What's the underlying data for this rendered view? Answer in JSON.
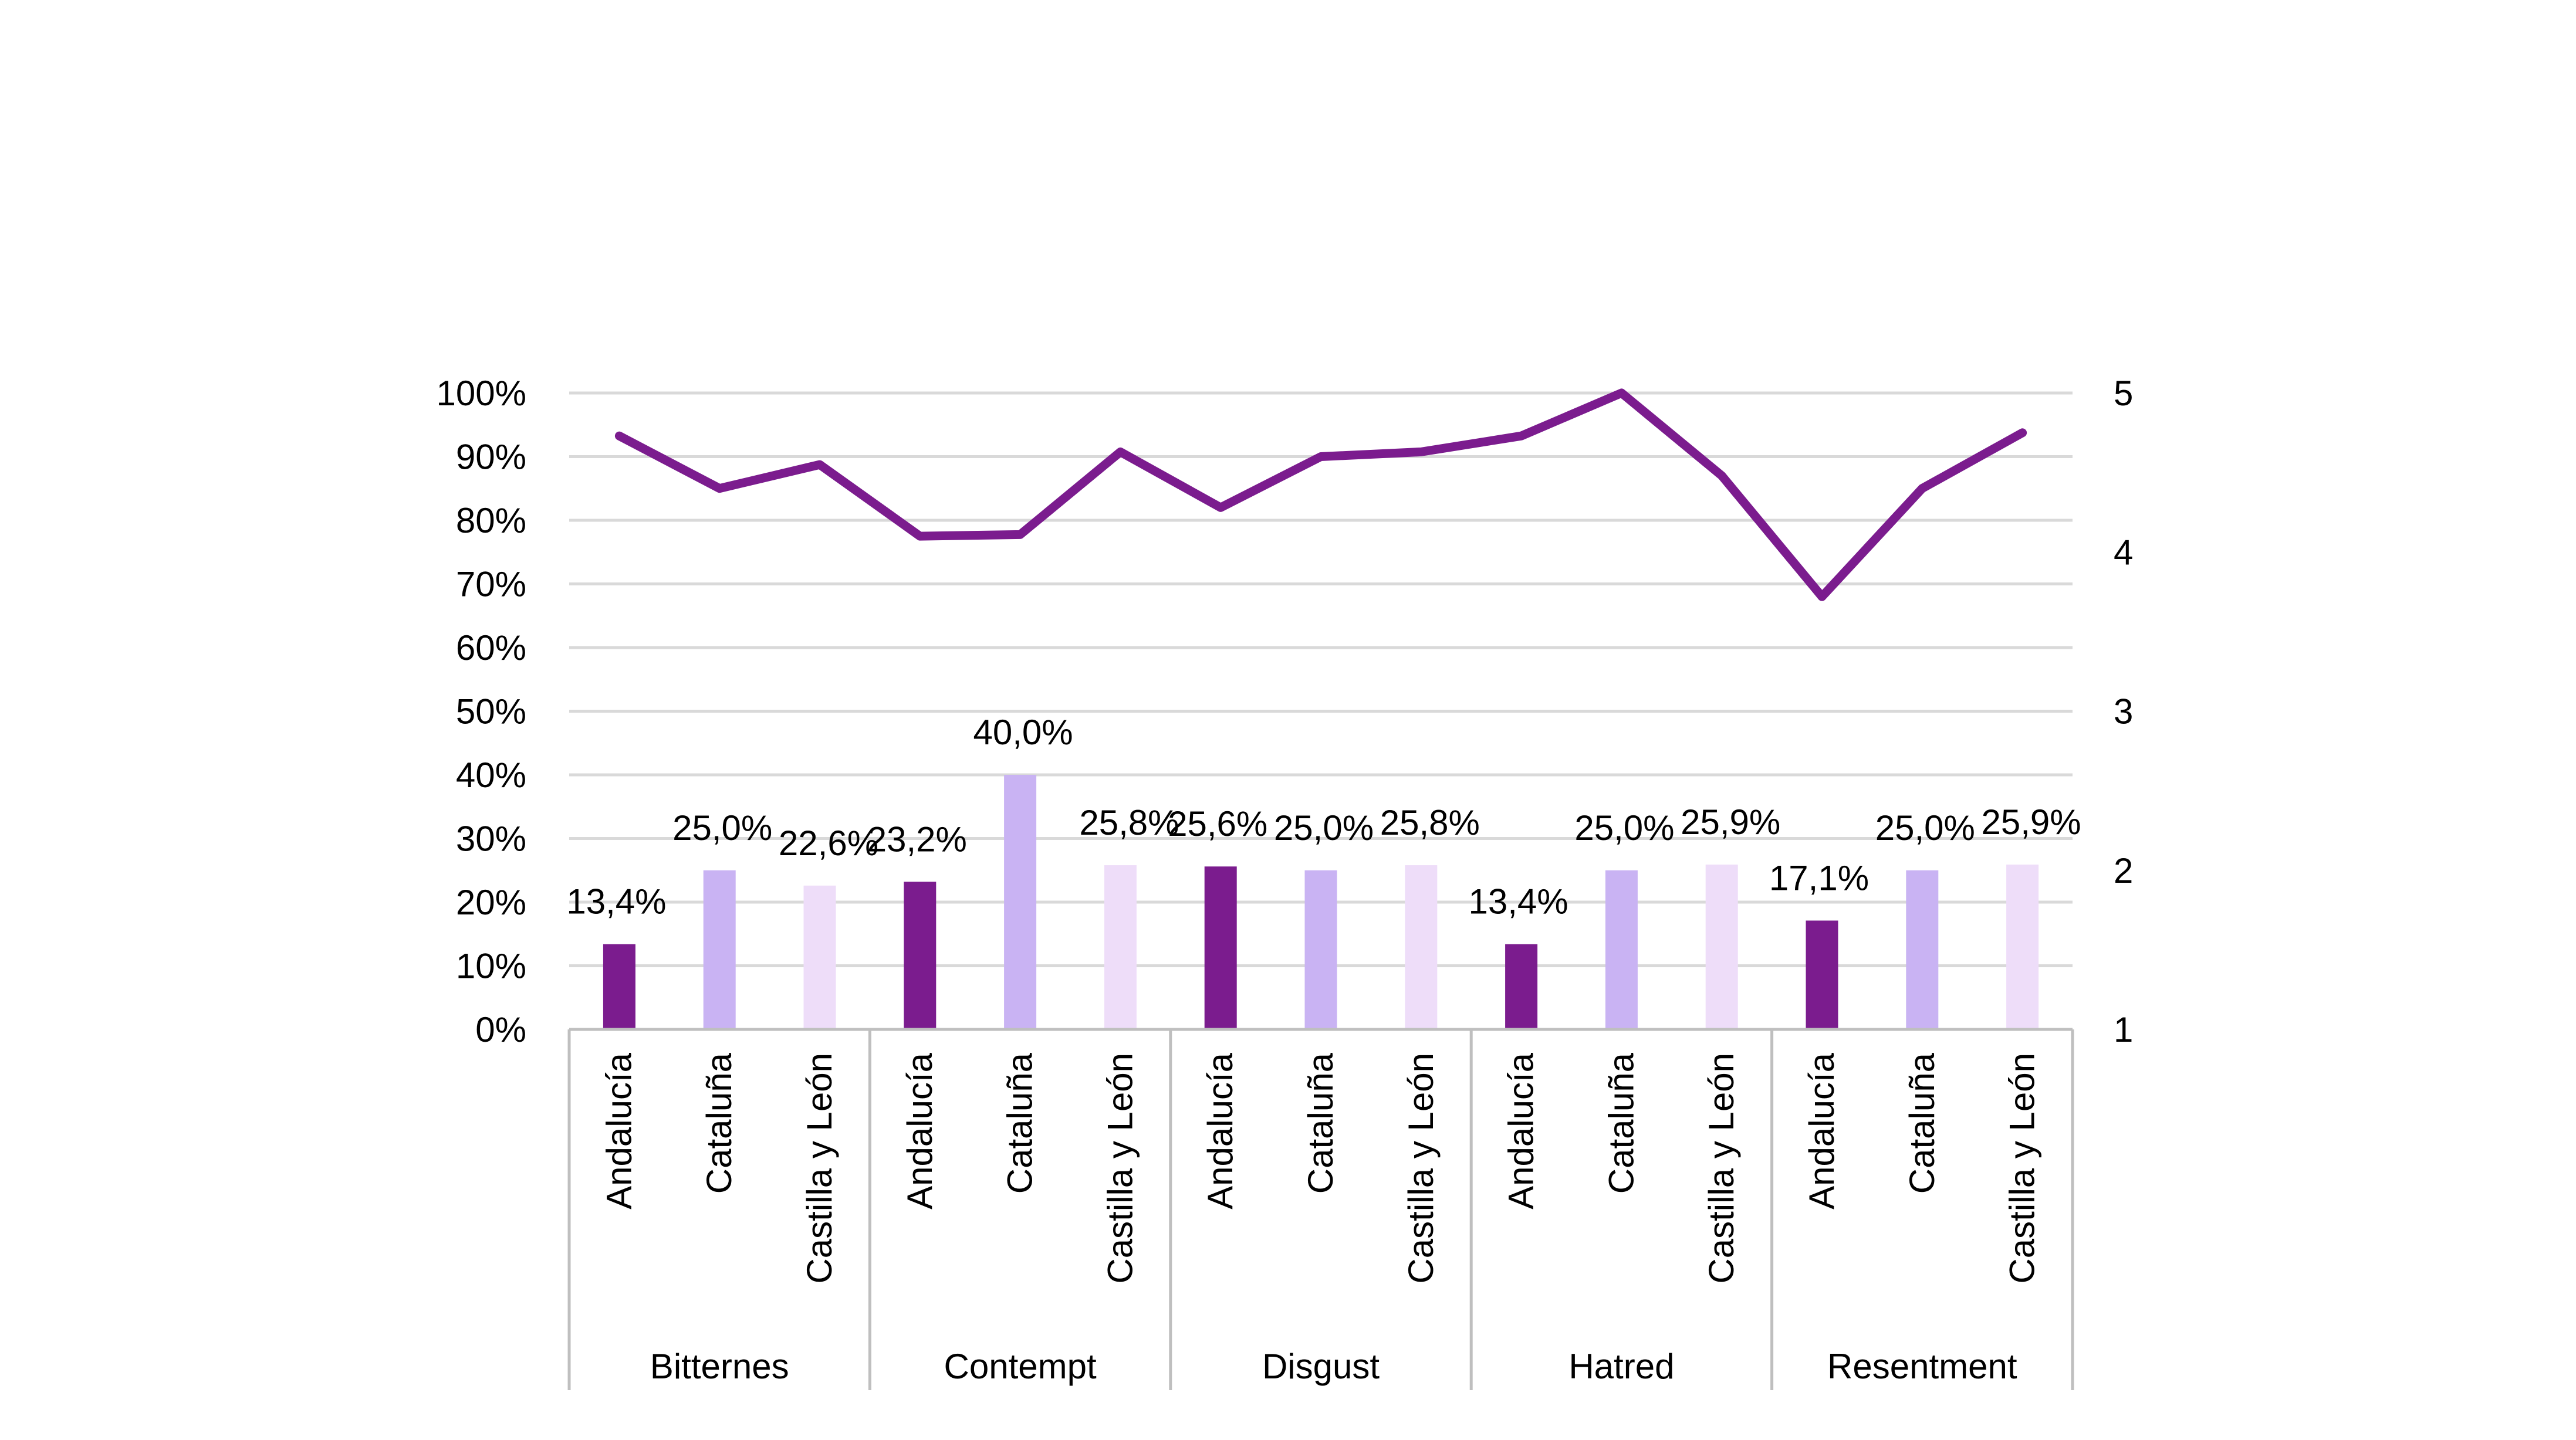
{
  "chart_data": {
    "type": "bar",
    "groups": [
      {
        "label": "Bitternes",
        "categories": [
          "Andalucía",
          "Cataluña",
          "Castilla y León"
        ]
      },
      {
        "label": "Contempt",
        "categories": [
          "Andalucía",
          "Cataluña",
          "Castilla y León"
        ]
      },
      {
        "label": "Disgust",
        "categories": [
          "Andalucía",
          "Cataluña",
          "Castilla y León"
        ]
      },
      {
        "label": "Hatred",
        "categories": [
          "Andalucía",
          "Cataluña",
          "Castilla y León"
        ]
      },
      {
        "label": "Resentment",
        "categories": [
          "Andalucía",
          "Cataluña",
          "Castilla y León"
        ]
      }
    ],
    "bar_values": [
      13.4,
      25.0,
      22.6,
      23.2,
      40.0,
      25.8,
      25.6,
      25.0,
      25.8,
      13.4,
      25.0,
      25.9,
      17.1,
      25.0,
      25.9
    ],
    "bar_labels": [
      "13,4%",
      "25,0%",
      "22,6%",
      "23,2%",
      "40,0%",
      "25,8%",
      "25,6%",
      "25,0%",
      "25,8%",
      "13,4%",
      "25,0%",
      "25,9%",
      "17,1%",
      "25,0%",
      "25,9%"
    ],
    "line_values": [
      4.73,
      4.4,
      4.55,
      4.1,
      4.11,
      4.63,
      4.28,
      4.6,
      4.63,
      4.73,
      5.0,
      4.48,
      3.72,
      4.4,
      4.75
    ],
    "y_left": {
      "ylim": [
        0,
        100
      ],
      "ticks": [
        "0%",
        "10%",
        "20%",
        "30%",
        "40%",
        "50%",
        "60%",
        "70%",
        "80%",
        "90%",
        "100%"
      ]
    },
    "y_right": {
      "ylim": [
        1,
        5
      ],
      "ticks": [
        "1",
        "2",
        "3",
        "4",
        "5"
      ]
    },
    "grid": true,
    "colors": {
      "andalucia": "#7B1C8E",
      "cataluna": "#C9B3F3",
      "castilla": "#EEDDF9",
      "line": "#7B1C8E",
      "grid": "#D9D9D9",
      "axis": "#BFBFBF"
    }
  }
}
